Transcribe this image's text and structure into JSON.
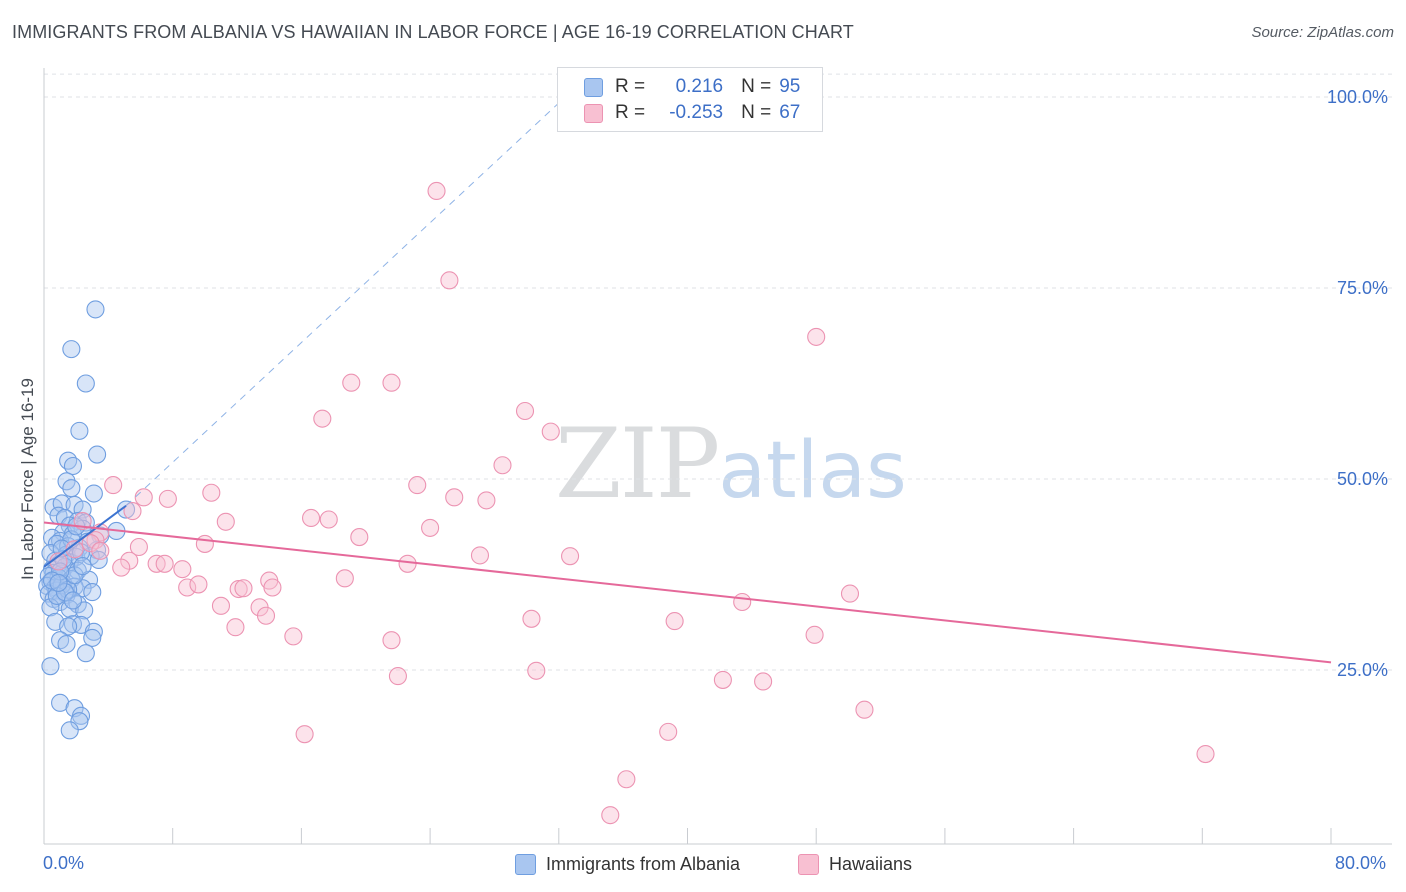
{
  "header": {
    "title": "IMMIGRANTS FROM ALBANIA VS HAWAIIAN IN LABOR FORCE | AGE 16-19 CORRELATION CHART",
    "source": "Source: ZipAtlas.com"
  },
  "watermark": {
    "zip": "ZIP",
    "atlas": "atlas"
  },
  "legend": {
    "rows": [
      {
        "r_label": "R =",
        "r_value": "0.216",
        "n_label": "N =",
        "n_value": "95",
        "color": "#a9c6f0",
        "border": "#6f9ee0"
      },
      {
        "r_label": "R =",
        "r_value": "-0.253",
        "n_label": "N =",
        "n_value": "67",
        "color": "#f8c0d2",
        "border": "#ec93b2"
      }
    ]
  },
  "bottom_legend": [
    {
      "label": "Immigrants from Albania",
      "color": "#a9c6f0",
      "border": "#6f9ee0"
    },
    {
      "label": "Hawaiians",
      "color": "#f8c0d2",
      "border": "#ec93b2"
    }
  ],
  "axes": {
    "ylabel": "In Labor Force | Age 16-19",
    "x_min_label": "0.0%",
    "x_max_label": "80.0%",
    "y_ticks": [
      "100.0%",
      "75.0%",
      "50.0%",
      "25.0%"
    ]
  },
  "chart_data": {
    "type": "scatter",
    "title": "IMMIGRANTS FROM ALBANIA VS HAWAIIAN IN LABOR FORCE | AGE 16-19 CORRELATION CHART",
    "xlabel": "",
    "ylabel": "In Labor Force | Age 16-19",
    "xlim": [
      0,
      80
    ],
    "ylim": [
      0,
      103
    ],
    "y_tick_values": [
      100,
      75,
      50,
      25
    ],
    "grid": "horizontal dashed",
    "legend_position": "top-center",
    "series": [
      {
        "name": "Immigrants from Albania",
        "color": "#6f9ee0",
        "fill": "#a9c6f0",
        "trend": {
          "x": [
            0,
            5.1
          ],
          "y": [
            38.5,
            46.5
          ],
          "extension_to": [
            32.4,
            100
          ]
        },
        "points": [
          [
            3.2,
            72.2
          ],
          [
            1.7,
            67.0
          ],
          [
            2.6,
            62.5
          ],
          [
            2.2,
            56.3
          ],
          [
            3.3,
            53.2
          ],
          [
            1.5,
            52.4
          ],
          [
            1.8,
            51.7
          ],
          [
            1.4,
            49.7
          ],
          [
            1.7,
            48.8
          ],
          [
            3.1,
            48.1
          ],
          [
            0.6,
            46.3
          ],
          [
            1.1,
            46.8
          ],
          [
            1.9,
            46.6
          ],
          [
            2.4,
            46.0
          ],
          [
            5.1,
            46.0
          ],
          [
            0.9,
            45.2
          ],
          [
            1.3,
            44.9
          ],
          [
            2.1,
            44.5
          ],
          [
            2.6,
            44.3
          ],
          [
            1.6,
            43.9
          ],
          [
            2.4,
            43.5
          ],
          [
            4.5,
            43.2
          ],
          [
            1.2,
            43.0
          ],
          [
            1.8,
            42.8
          ],
          [
            3.5,
            42.6
          ],
          [
            0.5,
            42.3
          ],
          [
            1.0,
            41.9
          ],
          [
            2.7,
            41.8
          ],
          [
            0.8,
            41.5
          ],
          [
            1.5,
            41.2
          ],
          [
            2.2,
            41.0
          ],
          [
            3.3,
            40.7
          ],
          [
            0.4,
            40.3
          ],
          [
            1.4,
            40.1
          ],
          [
            2.0,
            39.8
          ],
          [
            2.9,
            39.9
          ],
          [
            0.7,
            39.3
          ],
          [
            1.6,
            39.1
          ],
          [
            0.9,
            38.8
          ],
          [
            1.3,
            38.5
          ],
          [
            0.5,
            38.2
          ],
          [
            2.1,
            38.0
          ],
          [
            0.6,
            37.7
          ],
          [
            1.1,
            37.6
          ],
          [
            0.3,
            37.3
          ],
          [
            0.9,
            37.1
          ],
          [
            1.7,
            36.9
          ],
          [
            2.8,
            36.8
          ],
          [
            0.4,
            36.5
          ],
          [
            1.2,
            36.3
          ],
          [
            0.2,
            36.0
          ],
          [
            0.7,
            35.8
          ],
          [
            1.9,
            35.9
          ],
          [
            2.4,
            35.7
          ],
          [
            0.8,
            35.4
          ],
          [
            3.0,
            35.2
          ],
          [
            0.3,
            35.0
          ],
          [
            1.4,
            34.8
          ],
          [
            0.6,
            34.3
          ],
          [
            1.0,
            33.9
          ],
          [
            2.1,
            33.6
          ],
          [
            0.4,
            33.2
          ],
          [
            1.6,
            33.0
          ],
          [
            2.5,
            32.8
          ],
          [
            0.7,
            31.3
          ],
          [
            1.8,
            31.0
          ],
          [
            2.3,
            30.9
          ],
          [
            1.5,
            30.7
          ],
          [
            3.1,
            30.0
          ],
          [
            1.0,
            28.9
          ],
          [
            1.4,
            28.4
          ],
          [
            3.0,
            29.2
          ],
          [
            2.6,
            27.2
          ],
          [
            0.4,
            25.5
          ],
          [
            1.0,
            20.7
          ],
          [
            1.9,
            20.0
          ],
          [
            2.3,
            19.0
          ],
          [
            2.2,
            18.3
          ],
          [
            1.6,
            17.1
          ],
          [
            1.1,
            36.1
          ],
          [
            1.5,
            35.5
          ],
          [
            1.9,
            37.4
          ],
          [
            1.2,
            39.5
          ],
          [
            2.3,
            40.4
          ],
          [
            0.8,
            34.7
          ],
          [
            1.7,
            42.1
          ],
          [
            2.0,
            43.8
          ],
          [
            1.0,
            37.9
          ],
          [
            0.5,
            36.7
          ],
          [
            1.3,
            35.2
          ],
          [
            2.4,
            38.6
          ],
          [
            1.1,
            40.9
          ],
          [
            3.4,
            39.4
          ],
          [
            0.9,
            36.4
          ],
          [
            1.8,
            34.1
          ]
        ]
      },
      {
        "name": "Hawaiians",
        "color": "#ec93b2",
        "fill": "#f8c0d2",
        "trend": {
          "x": [
            0,
            80
          ],
          "y": [
            44.3,
            26.0
          ]
        },
        "points": [
          [
            24.4,
            87.7
          ],
          [
            25.2,
            76.0
          ],
          [
            48.0,
            68.6
          ],
          [
            19.1,
            62.6
          ],
          [
            21.6,
            62.6
          ],
          [
            29.9,
            58.9
          ],
          [
            17.3,
            57.9
          ],
          [
            31.5,
            56.2
          ],
          [
            28.5,
            51.8
          ],
          [
            4.3,
            49.2
          ],
          [
            23.2,
            49.2
          ],
          [
            10.4,
            48.2
          ],
          [
            6.2,
            47.6
          ],
          [
            7.7,
            47.4
          ],
          [
            25.5,
            47.6
          ],
          [
            27.5,
            47.2
          ],
          [
            5.5,
            45.8
          ],
          [
            16.6,
            44.9
          ],
          [
            17.7,
            44.7
          ],
          [
            11.3,
            44.4
          ],
          [
            2.4,
            44.5
          ],
          [
            24.0,
            43.6
          ],
          [
            3.5,
            43.0
          ],
          [
            19.6,
            42.4
          ],
          [
            3.2,
            42.0
          ],
          [
            2.9,
            41.6
          ],
          [
            10.0,
            41.5
          ],
          [
            5.9,
            41.1
          ],
          [
            1.9,
            40.8
          ],
          [
            3.5,
            40.6
          ],
          [
            27.1,
            40.0
          ],
          [
            32.7,
            39.9
          ],
          [
            5.3,
            39.3
          ],
          [
            7.0,
            38.9
          ],
          [
            7.5,
            38.9
          ],
          [
            22.6,
            38.9
          ],
          [
            4.8,
            38.4
          ],
          [
            8.6,
            38.2
          ],
          [
            18.7,
            37.0
          ],
          [
            14.0,
            36.7
          ],
          [
            8.9,
            35.8
          ],
          [
            14.2,
            35.8
          ],
          [
            9.6,
            36.2
          ],
          [
            12.1,
            35.6
          ],
          [
            12.4,
            35.7
          ],
          [
            50.1,
            35.0
          ],
          [
            43.4,
            33.9
          ],
          [
            11.0,
            33.4
          ],
          [
            13.4,
            33.2
          ],
          [
            13.8,
            32.1
          ],
          [
            30.3,
            31.7
          ],
          [
            39.2,
            31.4
          ],
          [
            11.9,
            30.6
          ],
          [
            15.5,
            29.4
          ],
          [
            21.6,
            28.9
          ],
          [
            47.9,
            29.6
          ],
          [
            30.6,
            24.9
          ],
          [
            22.0,
            24.2
          ],
          [
            42.2,
            23.7
          ],
          [
            44.7,
            23.5
          ],
          [
            51.0,
            19.8
          ],
          [
            16.2,
            16.6
          ],
          [
            38.8,
            16.9
          ],
          [
            72.2,
            14.0
          ],
          [
            36.2,
            10.7
          ],
          [
            35.2,
            6.0
          ],
          [
            0.9,
            39.2
          ]
        ]
      }
    ]
  }
}
